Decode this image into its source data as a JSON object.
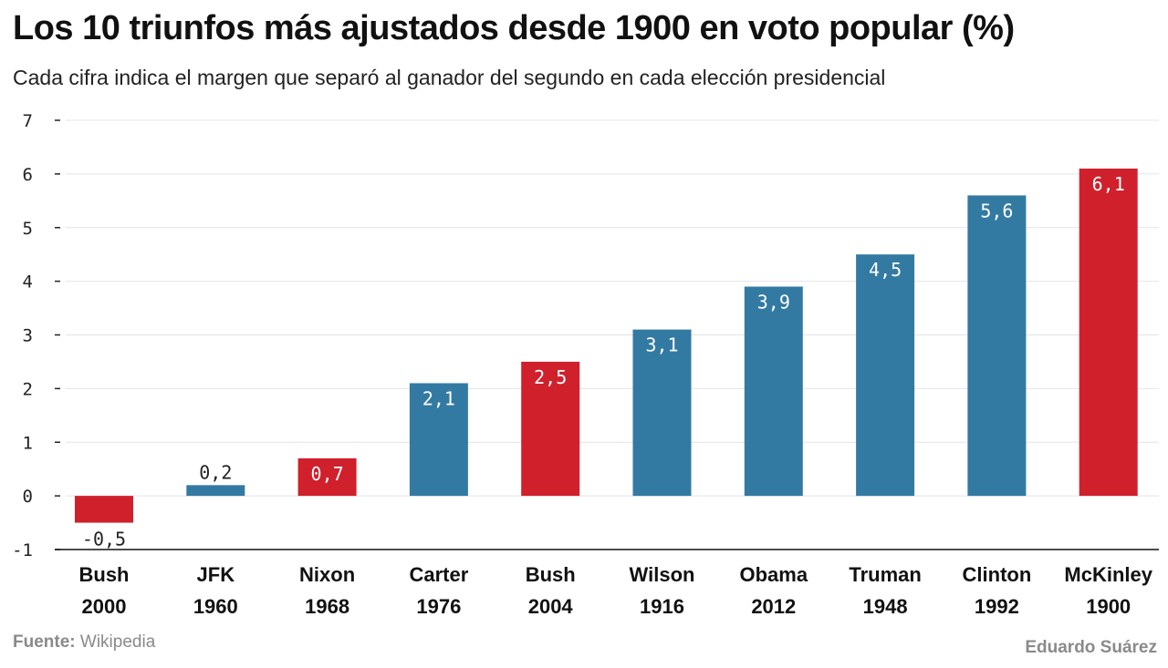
{
  "header": {
    "title": "Los 10 triunfos más ajustados desde 1900 en voto popular (%)",
    "subtitle": "Cada cifra indica el margen que separó al ganador del segundo en cada elección presidencial"
  },
  "footer": {
    "source_label": "Fuente:",
    "source_value": "Wikipedia",
    "credit": "Eduardo Suárez"
  },
  "colors": {
    "republican": "#d0202c",
    "democrat": "#337aa3",
    "grid": "#e4e4e4",
    "axis": "#222222"
  },
  "chart_data": {
    "type": "bar",
    "title": "Los 10 triunfos más ajustados desde 1900 en voto popular (%)",
    "subtitle": "Cada cifra indica el margen que separó al ganador del segundo en cada elección presidencial",
    "xlabel": "",
    "ylabel": "",
    "ylim": [
      -1,
      7
    ],
    "yticks": [
      -1,
      0,
      1,
      2,
      3,
      4,
      5,
      6,
      7
    ],
    "grid": true,
    "legend": "none",
    "categories": [
      {
        "name": "Bush",
        "year": "2000"
      },
      {
        "name": "JFK",
        "year": "1960"
      },
      {
        "name": "Nixon",
        "year": "1968"
      },
      {
        "name": "Carter",
        "year": "1976"
      },
      {
        "name": "Bush",
        "year": "2004"
      },
      {
        "name": "Wilson",
        "year": "1916"
      },
      {
        "name": "Obama",
        "year": "2012"
      },
      {
        "name": "Truman",
        "year": "1948"
      },
      {
        "name": "Clinton",
        "year": "1992"
      },
      {
        "name": "McKinley",
        "year": "1900"
      }
    ],
    "values": [
      -0.5,
      0.2,
      0.7,
      2.1,
      2.5,
      3.1,
      3.9,
      4.5,
      5.6,
      6.1
    ],
    "value_labels": [
      "-0,5",
      "0,2",
      "0,7",
      "2,1",
      "2,5",
      "3,1",
      "3,9",
      "4,5",
      "5,6",
      "6,1"
    ],
    "party": [
      "republican",
      "democrat",
      "republican",
      "democrat",
      "republican",
      "democrat",
      "democrat",
      "democrat",
      "democrat",
      "republican"
    ]
  }
}
